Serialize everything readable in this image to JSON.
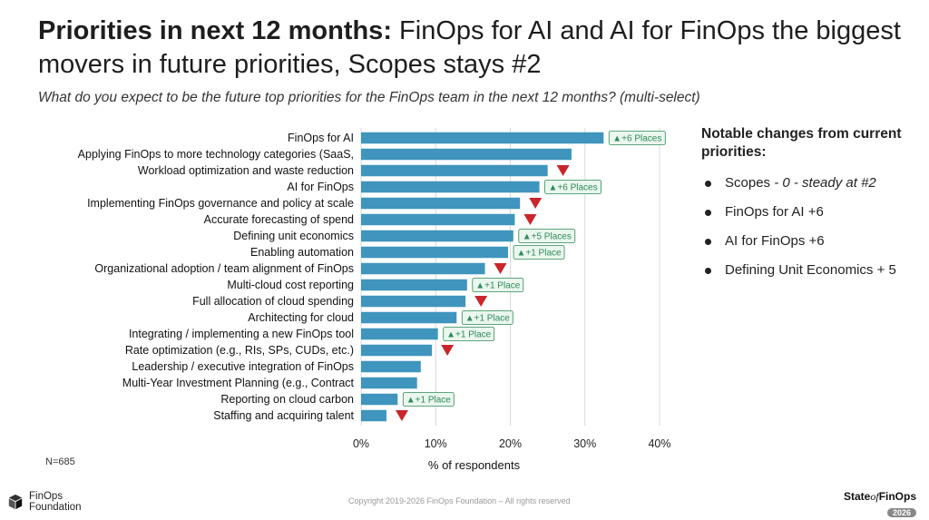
{
  "header": {
    "title_bold": "Priorities in next 12 months:",
    "title_rest": " FinOps for AI and AI for FinOps the biggest movers in future priorities, Scopes stays #2",
    "subtitle": "What do you expect to be the future top priorities for the FinOps team in the next 12 months? (multi-select)"
  },
  "chart_data": {
    "type": "bar",
    "orientation": "horizontal",
    "categories": [
      "FinOps for AI",
      "Applying FinOps to more technology categories (SaaS,",
      "Workload optimization and waste reduction",
      "AI for FinOps",
      "Implementing FinOps governance and policy at scale",
      "Accurate forecasting of spend",
      "Defining unit economics",
      "Enabling automation",
      "Organizational adoption / team alignment of FinOps",
      "Multi-cloud cost reporting",
      "Full allocation of cloud spending",
      "Architecting for cloud",
      "Integrating / implementing a new FinOps tool",
      "Rate optimization (e.g., RIs, SPs, CUDs, etc.)",
      "Leadership / executive integration of FinOps",
      "Multi-Year Investment Planning (e.g., Contract",
      "Reporting on cloud carbon",
      "Staffing and acquiring talent"
    ],
    "values": [
      32.5,
      28.2,
      25.0,
      23.9,
      21.3,
      20.6,
      20.4,
      19.7,
      16.6,
      14.2,
      14.0,
      12.8,
      10.3,
      9.5,
      8.0,
      7.5,
      4.9,
      3.4
    ],
    "changes": [
      {
        "type": "up",
        "label": "▲+6 Places"
      },
      {
        "type": "none",
        "label": ""
      },
      {
        "type": "down",
        "label": ""
      },
      {
        "type": "up",
        "label": "▲+6 Places"
      },
      {
        "type": "down",
        "label": ""
      },
      {
        "type": "down",
        "label": ""
      },
      {
        "type": "up",
        "label": "▲+5 Places"
      },
      {
        "type": "up",
        "label": "▲+1 Place"
      },
      {
        "type": "down",
        "label": ""
      },
      {
        "type": "up",
        "label": "▲+1 Place"
      },
      {
        "type": "down",
        "label": ""
      },
      {
        "type": "up",
        "label": "▲+1 Place"
      },
      {
        "type": "up",
        "label": "▲+1 Place"
      },
      {
        "type": "down",
        "label": ""
      },
      {
        "type": "none",
        "label": ""
      },
      {
        "type": "none",
        "label": ""
      },
      {
        "type": "up",
        "label": "▲+1 Place"
      },
      {
        "type": "down",
        "label": ""
      }
    ],
    "xlim": [
      0,
      40
    ],
    "x_ticks": [
      0,
      10,
      20,
      30,
      40
    ],
    "x_tick_labels": [
      "0%",
      "10%",
      "20%",
      "30%",
      "40%"
    ],
    "xlabel": "% of respondents",
    "grid": "vertical",
    "colors": {
      "bar": "#3f95bd",
      "down": "#c8262b",
      "up_badge": "#2e8b57",
      "up_badge_bg": "#eaf6ee",
      "grid": "#d9d9d9"
    }
  },
  "notes": {
    "title": "Notable changes from current priorities:",
    "items": [
      {
        "lead": "Scopes",
        "italic": " - 0 - steady at #2"
      },
      {
        "lead": "FinOps for AI +6",
        "italic": ""
      },
      {
        "lead": "AI for FinOps +6",
        "italic": ""
      },
      {
        "lead": "Defining Unit Economics + 5",
        "italic": ""
      }
    ]
  },
  "footer": {
    "n_label": "N=685",
    "copyright": "Copyright 2019-2026 FinOps Foundation – All rights reserved",
    "logo_line1": "FinOps",
    "logo_line2": "Foundation",
    "sof_state": "State",
    "sof_of": "of",
    "sof_finops": "FinOps",
    "sof_year": "2026"
  }
}
